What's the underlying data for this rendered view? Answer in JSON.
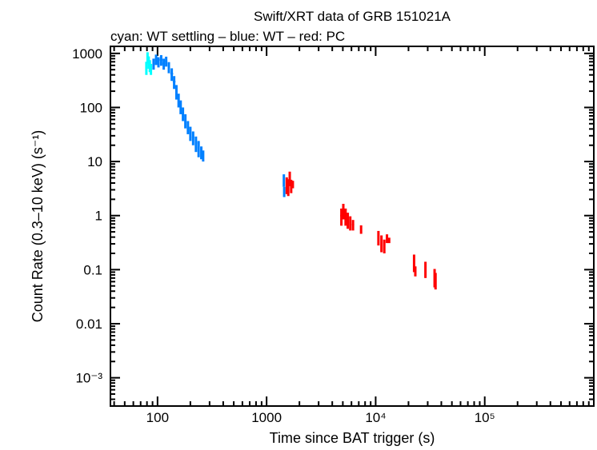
{
  "chart_data": {
    "type": "scatter",
    "title": "Swift/XRT data of GRB 151021A",
    "subtitle": "cyan: WT settling – blue: WT – red: PC",
    "xlabel": "Time since BAT trigger (s)",
    "ylabel": "Count Rate (0.3–10 keV) (s⁻¹)",
    "xscale": "log",
    "yscale": "log",
    "xlim": [
      37,
      1000000
    ],
    "ylim": [
      0.0003,
      1350
    ],
    "grid": false,
    "x_ticks": [
      {
        "value": 100,
        "label": "100"
      },
      {
        "value": 1000,
        "label": "1000"
      },
      {
        "value": 10000,
        "label": "10⁴"
      },
      {
        "value": 100000,
        "label": "10⁵"
      }
    ],
    "y_ticks": [
      {
        "value": 1000,
        "label": "1000"
      },
      {
        "value": 100,
        "label": "100"
      },
      {
        "value": 10,
        "label": "10"
      },
      {
        "value": 1,
        "label": "1"
      },
      {
        "value": 0.1,
        "label": "0.1"
      },
      {
        "value": 0.01,
        "label": "0.01"
      },
      {
        "value": 0.001,
        "label": "10⁻³"
      }
    ],
    "series": [
      {
        "name": "WT settling",
        "color": "#00ffff",
        "points": [
          [
            79,
            550,
            1.5,
            150
          ],
          [
            81,
            850,
            1,
            200
          ],
          [
            83,
            700,
            1,
            180
          ],
          [
            85,
            600,
            1,
            150
          ],
          [
            87,
            520,
            1,
            120
          ]
        ]
      },
      {
        "name": "WT",
        "color": "#0080ff",
        "points": [
          [
            92,
            650,
            2,
            150
          ],
          [
            97,
            780,
            2,
            170
          ],
          [
            102,
            700,
            2.5,
            150
          ],
          [
            108,
            760,
            3,
            170
          ],
          [
            114,
            650,
            3,
            150
          ],
          [
            120,
            720,
            3,
            150
          ],
          [
            127,
            560,
            3,
            130
          ],
          [
            135,
            420,
            4,
            110
          ],
          [
            142,
            300,
            4,
            80
          ],
          [
            149,
            200,
            3,
            60
          ],
          [
            156,
            140,
            3,
            40
          ],
          [
            163,
            105,
            3,
            30
          ],
          [
            171,
            78,
            4,
            22
          ],
          [
            180,
            58,
            4,
            17
          ],
          [
            190,
            44,
            4,
            12
          ],
          [
            200,
            34,
            4,
            10
          ],
          [
            212,
            28,
            5,
            8
          ],
          [
            225,
            22,
            5,
            7
          ],
          [
            238,
            18,
            5,
            6
          ],
          [
            252,
            15,
            5,
            4
          ],
          [
            262,
            13,
            4,
            3
          ],
          [
            1440,
            4.6,
            12,
            1.2
          ],
          [
            1450,
            2.8,
            12,
            0.6
          ]
        ]
      },
      {
        "name": "PC",
        "color": "#ff0000",
        "points": [
          [
            1530,
            3.8,
            20,
            1.3
          ],
          [
            1580,
            3.5,
            20,
            1.2
          ],
          [
            1630,
            5,
            20,
            1.5
          ],
          [
            1680,
            3.6,
            20,
            1
          ],
          [
            1740,
            3.8,
            20,
            0.6
          ],
          [
            4850,
            1,
            120,
            0.35
          ],
          [
            5050,
            1.25,
            120,
            0.4
          ],
          [
            5300,
            1.0,
            120,
            0.35
          ],
          [
            5550,
            0.85,
            120,
            0.28
          ],
          [
            5850,
            0.75,
            120,
            0.22
          ],
          [
            6200,
            0.68,
            150,
            0.15
          ],
          [
            7350,
            0.56,
            80,
            0.1
          ],
          [
            10600,
            0.4,
            150,
            0.12
          ],
          [
            11300,
            0.32,
            200,
            0.11
          ],
          [
            12000,
            0.28,
            200,
            0.08
          ],
          [
            12700,
            0.38,
            300,
            0.07
          ],
          [
            13300,
            0.35,
            200,
            0.04
          ],
          [
            22500,
            0.14,
            300,
            0.05
          ],
          [
            23100,
            0.095,
            300,
            0.02
          ],
          [
            28600,
            0.105,
            300,
            0.035
          ],
          [
            34700,
            0.075,
            300,
            0.028
          ],
          [
            35400,
            0.065,
            300,
            0.022
          ]
        ]
      }
    ]
  }
}
